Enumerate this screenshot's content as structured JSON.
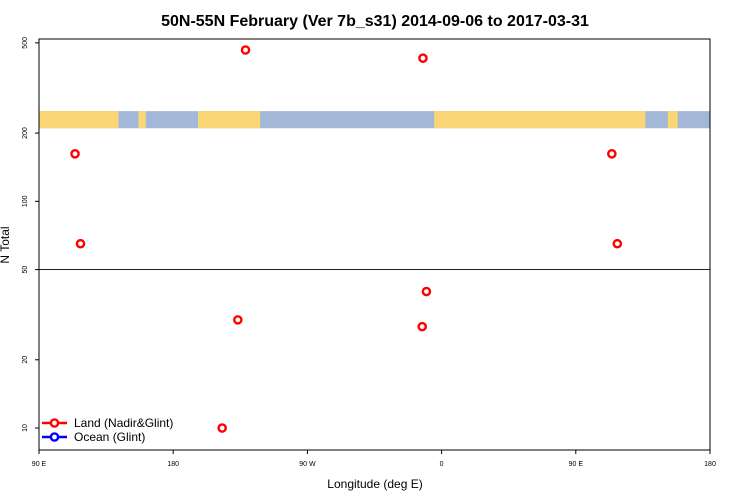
{
  "chart_data": {
    "type": "scatter",
    "title": "50N-55N February (Ver 7b_s31)   2014-09-06 to 2017-03-31",
    "xlabel": "Longitude (deg E)",
    "ylabel": "N Total",
    "xlim": [
      -90,
      180
    ],
    "ylim": [
      8,
      520
    ],
    "y_scale": "log",
    "reference_line_y": 50,
    "x_ticks": [
      {
        "value": -90,
        "label": "90 E"
      },
      {
        "value": -36,
        "label": "180"
      },
      {
        "value": 18,
        "label": "90 W"
      },
      {
        "value": 72,
        "label": "0"
      },
      {
        "value": 126,
        "label": "90 E"
      },
      {
        "value": 180,
        "label": "180"
      }
    ],
    "y_ticks": [
      {
        "value": 10,
        "label": "10"
      },
      {
        "value": 20,
        "label": "20"
      },
      {
        "value": 50,
        "label": "50"
      },
      {
        "value": 100,
        "label": "100"
      },
      {
        "value": 200,
        "label": "200"
      },
      {
        "value": 500,
        "label": "500"
      }
    ],
    "land_ocean_strip": {
      "y_range": [
        210,
        250
      ],
      "ocean_color": "#a3b8d8",
      "land_color": "#fbd676",
      "land_segments": [
        [
          -90,
          -58
        ],
        [
          -50,
          -47
        ],
        [
          -26,
          -1
        ],
        [
          69,
          154
        ],
        [
          163,
          167
        ]
      ]
    },
    "legend_position": "bottom-left",
    "series": [
      {
        "name": "Land (Nadir&Glint)",
        "color": "#ff0000",
        "points": [
          {
            "x": -75.5,
            "y": 162
          },
          {
            "x": -73.3,
            "y": 65
          },
          {
            "x": -6.9,
            "y": 465
          },
          {
            "x": -10.0,
            "y": 30
          },
          {
            "x": -16.3,
            "y": 10
          },
          {
            "x": 64.2,
            "y": 28
          },
          {
            "x": 64.5,
            "y": 428
          },
          {
            "x": 65.9,
            "y": 40
          },
          {
            "x": 140.5,
            "y": 162
          },
          {
            "x": 142.7,
            "y": 65
          }
        ]
      },
      {
        "name": "Ocean (Glint)",
        "color": "#0000ff",
        "points": []
      }
    ]
  }
}
